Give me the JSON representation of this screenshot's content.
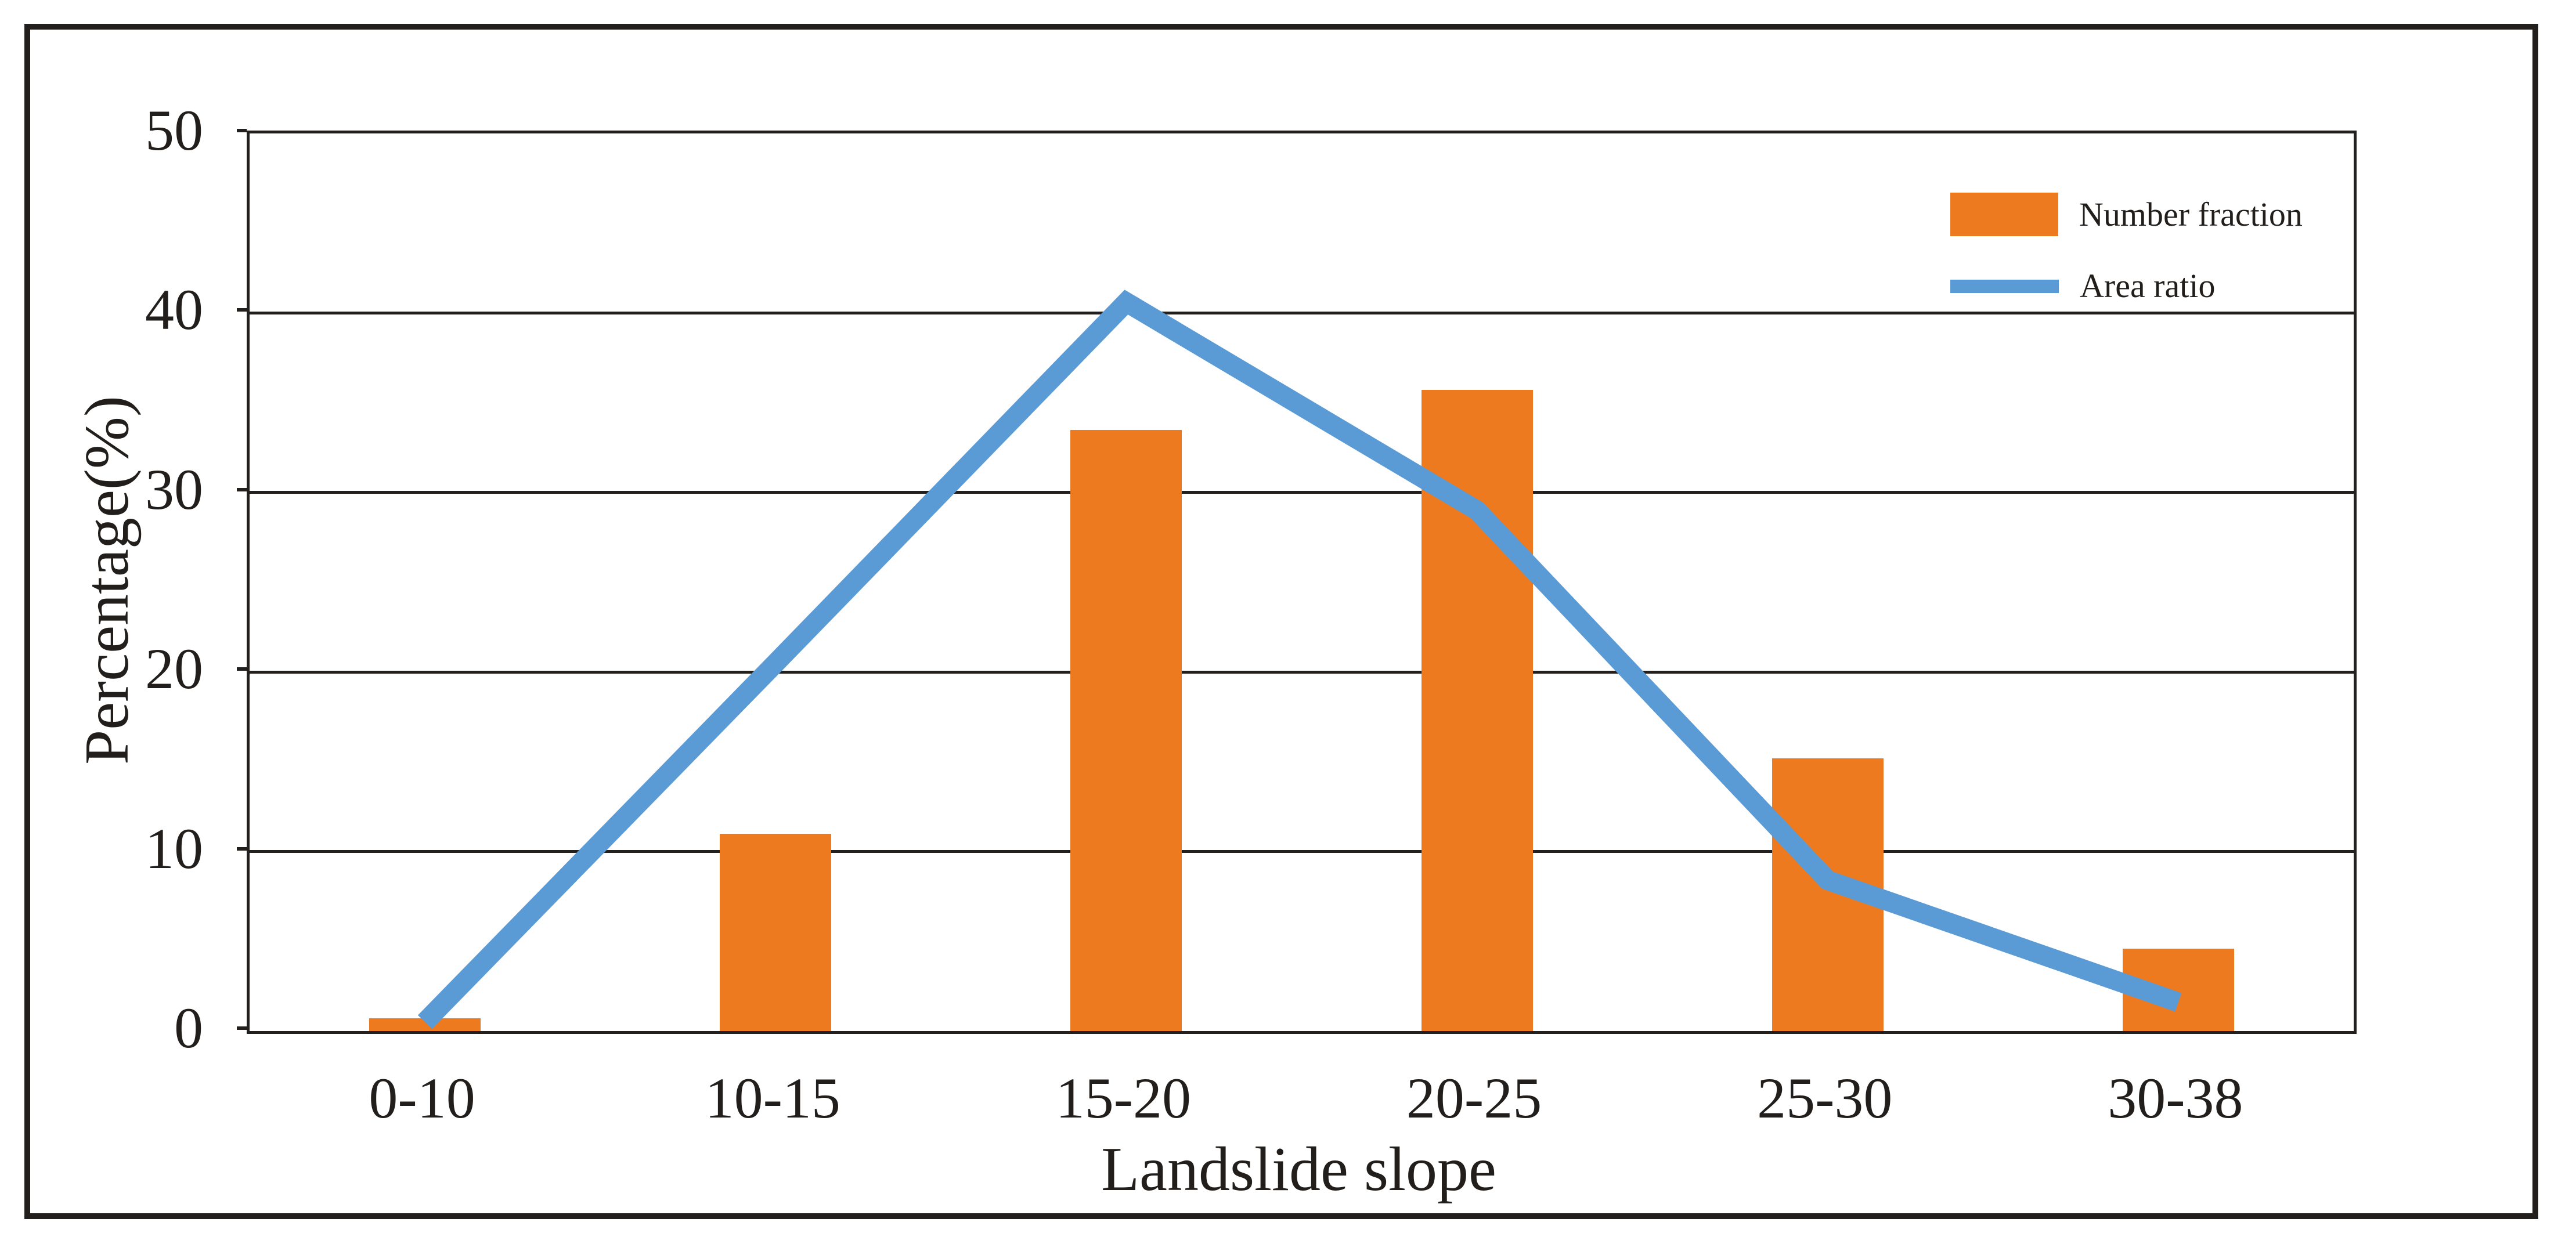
{
  "chart_data": {
    "type": "bar",
    "combo": "bar+line",
    "categories": [
      "0-10",
      "10-15",
      "15-20",
      "20-25",
      "25-30",
      "30-38"
    ],
    "series": [
      {
        "name": "Number fraction",
        "type": "bar",
        "color": "#ED7A1E",
        "values": [
          0.7,
          11,
          33.5,
          35.7,
          15.2,
          4.6
        ]
      },
      {
        "name": "Area ratio",
        "type": "line",
        "color": "#5B9BD5",
        "values": [
          0.5,
          20.5,
          40.6,
          29,
          8.4,
          1.6
        ]
      }
    ],
    "title": "",
    "xlabel": "Landslide slope",
    "ylabel": "Percentage(%)",
    "ylim": [
      0,
      50
    ],
    "yticks": [
      0,
      10,
      20,
      30,
      40,
      50
    ],
    "ytick_step": 10,
    "grid": "horizontal",
    "legend_position": "top-right",
    "axis_color": "#231F1C",
    "text_color": "#221E1B"
  }
}
